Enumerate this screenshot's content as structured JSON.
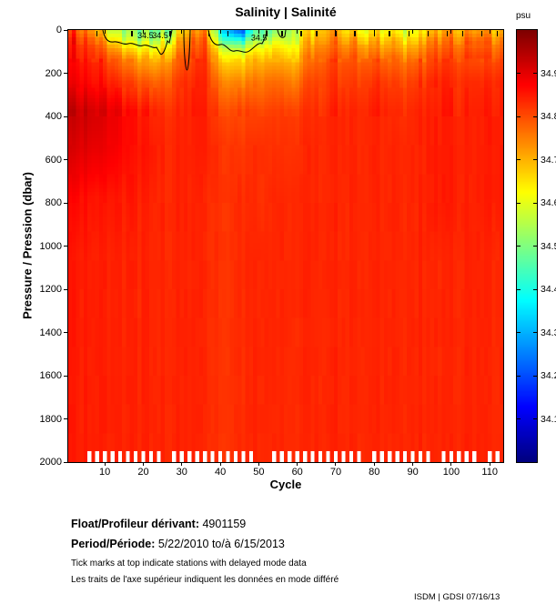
{
  "title": "Salinity | Salinité",
  "axes": {
    "xlabel": "Cycle",
    "ylabel": "Pressure / Pression (dbar)",
    "x_tick_values": [
      10,
      20,
      30,
      40,
      50,
      60,
      70,
      80,
      90,
      100,
      110
    ],
    "x_tick_labels": [
      "10",
      "20",
      "30",
      "40",
      "50",
      "60",
      "70",
      "80",
      "90",
      "100",
      "110"
    ],
    "y_tick_values": [
      0,
      200,
      400,
      600,
      800,
      1000,
      1200,
      1400,
      1600,
      1800,
      2000
    ],
    "y_tick_labels": [
      "0",
      "200",
      "400",
      "600",
      "800",
      "1000",
      "1200",
      "1400",
      "1600",
      "1800",
      "2000"
    ]
  },
  "colorbar": {
    "unit_label": "psu",
    "min": 34.0,
    "max": 35.0,
    "tick_values": [
      34.9,
      34.8,
      34.7,
      34.6,
      34.5,
      34.4,
      34.3,
      34.2,
      34.1
    ],
    "tick_labels": [
      "34.9",
      "34.8",
      "34.7",
      "34.6",
      "34.5",
      "34.4",
      "34.3",
      "34.2",
      "34.1"
    ]
  },
  "chart_data": {
    "type": "heatmap",
    "title": "Salinity | Salinité",
    "xlabel": "Cycle",
    "ylabel": "Pressure / Pression (dbar)",
    "colormap": "jet",
    "colorbar_label": "psu",
    "value_range": [
      34.0,
      35.0
    ],
    "x_range": [
      1,
      113
    ],
    "y_range": [
      0,
      2000
    ],
    "y_axis_reversed": true,
    "grid_on": false,
    "legend": "none",
    "grid_x_centers": [
      3,
      8,
      12,
      17,
      22,
      26,
      31,
      36,
      40,
      45,
      50,
      54,
      59,
      63,
      68,
      73,
      77,
      82,
      87,
      91,
      96,
      100,
      105,
      110
    ],
    "grid_y_centers": [
      12,
      40,
      85,
      145,
      240,
      375,
      550,
      775,
      1050,
      1350,
      1650,
      1900
    ],
    "values": [
      [
        34.8,
        34.74,
        34.56,
        34.5,
        34.49,
        34.52,
        34.68,
        34.76,
        34.42,
        34.22,
        34.48,
        34.52,
        34.58,
        34.66,
        34.72,
        34.68,
        34.65,
        34.64,
        34.61,
        34.64,
        34.7,
        34.73,
        34.69,
        34.71
      ],
      [
        34.83,
        34.79,
        34.62,
        34.53,
        34.52,
        34.58,
        34.72,
        34.79,
        34.48,
        34.36,
        34.52,
        34.58,
        34.6,
        34.69,
        34.74,
        34.72,
        34.7,
        34.68,
        34.66,
        34.68,
        34.74,
        34.76,
        34.73,
        34.75
      ],
      [
        34.85,
        34.82,
        34.72,
        34.63,
        34.61,
        34.66,
        34.76,
        34.81,
        34.6,
        34.54,
        34.62,
        34.66,
        34.64,
        34.73,
        34.77,
        34.76,
        34.75,
        34.73,
        34.71,
        34.73,
        34.78,
        34.79,
        34.77,
        34.78
      ],
      [
        34.86,
        34.85,
        34.79,
        34.73,
        34.7,
        34.73,
        34.8,
        34.83,
        34.69,
        34.66,
        34.7,
        34.72,
        34.7,
        34.77,
        34.8,
        34.8,
        34.79,
        34.78,
        34.77,
        34.78,
        34.81,
        34.82,
        34.8,
        34.81
      ],
      [
        34.88,
        34.87,
        34.84,
        34.8,
        34.78,
        34.79,
        34.83,
        34.84,
        34.76,
        34.74,
        34.76,
        34.78,
        34.76,
        34.81,
        34.82,
        34.82,
        34.82,
        34.82,
        34.81,
        34.82,
        34.84,
        34.84,
        34.83,
        34.84
      ],
      [
        34.93,
        34.92,
        34.89,
        34.86,
        34.84,
        34.83,
        34.84,
        34.85,
        34.81,
        34.8,
        34.81,
        34.82,
        34.82,
        34.83,
        34.84,
        34.84,
        34.84,
        34.84,
        34.83,
        34.84,
        34.85,
        34.85,
        34.84,
        34.85
      ],
      [
        34.91,
        34.9,
        34.88,
        34.86,
        34.85,
        34.84,
        34.84,
        34.85,
        34.83,
        34.82,
        34.83,
        34.83,
        34.83,
        34.84,
        34.84,
        34.84,
        34.84,
        34.84,
        34.84,
        34.84,
        34.85,
        34.85,
        34.84,
        34.85
      ],
      [
        34.87,
        34.86,
        34.85,
        34.85,
        34.84,
        34.84,
        34.84,
        34.84,
        34.83,
        34.83,
        34.83,
        34.84,
        34.84,
        34.84,
        34.84,
        34.84,
        34.84,
        34.84,
        34.84,
        34.84,
        34.85,
        34.85,
        34.84,
        34.85
      ],
      [
        34.85,
        34.85,
        34.84,
        34.84,
        34.84,
        34.84,
        34.84,
        34.84,
        34.83,
        34.83,
        34.84,
        34.84,
        34.84,
        34.84,
        34.84,
        34.84,
        34.84,
        34.84,
        34.84,
        34.84,
        34.84,
        34.84,
        34.84,
        34.84
      ],
      [
        34.85,
        34.85,
        34.84,
        34.84,
        34.84,
        34.84,
        34.84,
        34.84,
        34.83,
        34.83,
        34.84,
        34.84,
        34.84,
        34.84,
        34.84,
        34.84,
        34.84,
        34.84,
        34.84,
        34.84,
        34.84,
        34.84,
        34.84,
        34.84
      ],
      [
        34.85,
        34.85,
        34.84,
        34.84,
        34.84,
        34.84,
        34.84,
        34.84,
        34.83,
        34.83,
        34.84,
        34.84,
        34.84,
        34.84,
        34.84,
        34.84,
        34.84,
        34.84,
        34.84,
        34.84,
        34.84,
        34.84,
        34.84,
        34.84
      ],
      [
        34.85,
        34.85,
        34.84,
        34.84,
        34.84,
        34.84,
        34.84,
        34.84,
        34.83,
        34.83,
        34.84,
        34.84,
        34.84,
        34.84,
        34.84,
        34.84,
        34.84,
        34.84,
        34.84,
        34.84,
        34.84,
        34.84,
        34.84,
        34.84
      ]
    ],
    "contour_level": 34.5,
    "contour_labels": [
      {
        "text": "34.5",
        "cycle": 18.5,
        "pressure": 38
      },
      {
        "text": "34.5",
        "cycle": 22.3,
        "pressure": 38
      },
      {
        "text": "34.5",
        "cycle": 48.0,
        "pressure": 48
      }
    ],
    "delayed_mode_tick_cycles": [
      8,
      17,
      27,
      37,
      42,
      52,
      56,
      61,
      65,
      70,
      75,
      80,
      84,
      89,
      94,
      99,
      103,
      108,
      112
    ],
    "bottom_missing_cycles": [
      6,
      8,
      10,
      12,
      14,
      16,
      18,
      20,
      22,
      24,
      28,
      30,
      32,
      34,
      36,
      38,
      40,
      42,
      44,
      46,
      48,
      54,
      56,
      58,
      60,
      62,
      64,
      66,
      68,
      70,
      72,
      74,
      76,
      80,
      82,
      84,
      86,
      88,
      90,
      92,
      94,
      98,
      100,
      102,
      104,
      106,
      110,
      112
    ]
  },
  "footer": {
    "float_label": "Float/Profileur dérivant:",
    "float_value": "4901159",
    "period_label": "Period/Période:",
    "period_value": "5/22/2010  to/à  6/15/2013",
    "note_en": "Tick marks at top indicate stations with delayed mode data",
    "note_fr": "Les traits de l'axe supérieur indiquent les données en mode différé",
    "credit": "ISDM | GDSI  07/16/13"
  }
}
